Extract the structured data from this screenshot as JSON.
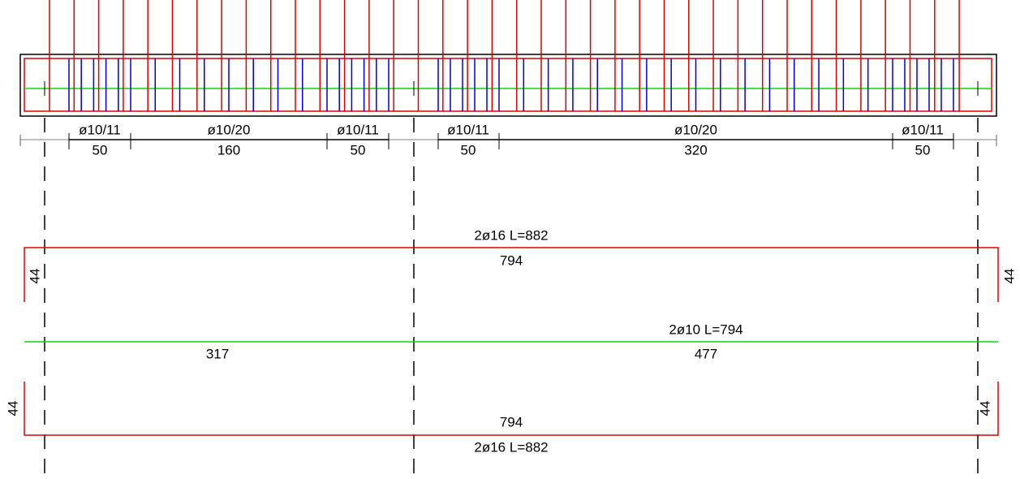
{
  "stirrups": [
    {
      "label": "ø10/11",
      "length": "50"
    },
    {
      "label": "ø10/20",
      "length": "160"
    },
    {
      "label": "ø10/11",
      "length": "50"
    },
    {
      "label": "ø10/11",
      "length": "50"
    },
    {
      "label": "ø10/20",
      "length": "320"
    },
    {
      "label": "ø10/11",
      "length": "50"
    }
  ],
  "bars": {
    "top": {
      "label": "2ø16 L=882",
      "length": "794",
      "hook_left": "44",
      "hook_right": "44"
    },
    "middle": {
      "label": "2ø10 L=794",
      "left": "317",
      "right": "477"
    },
    "bottom": {
      "label": "2ø16 L=882",
      "length": "794",
      "hook_left": "44",
      "hook_right": "44"
    }
  }
}
